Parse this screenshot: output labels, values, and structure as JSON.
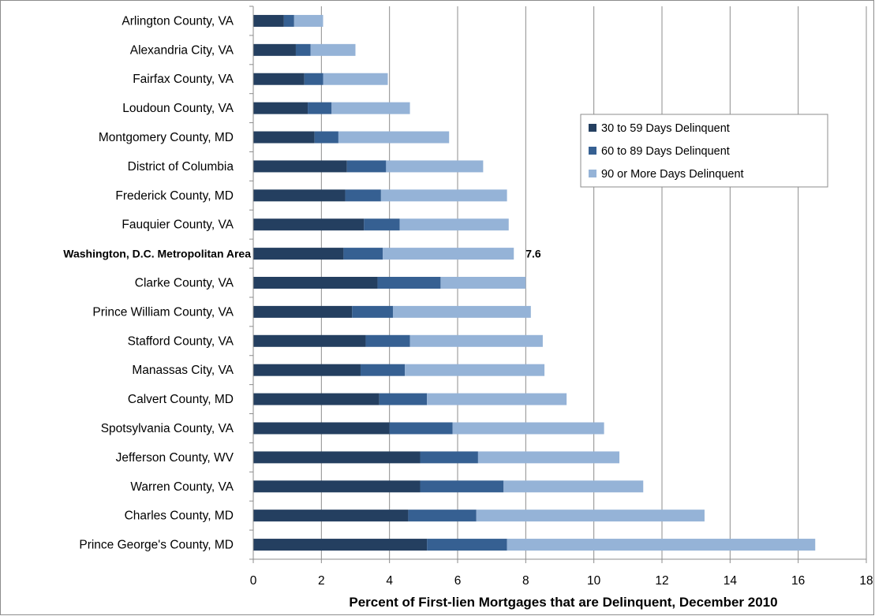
{
  "chart_data": {
    "type": "bar",
    "orientation": "horizontal",
    "stacked": true,
    "categories": [
      "Arlington County, VA",
      "Alexandria City, VA",
      "Fairfax County, VA",
      "Loudoun County, VA",
      "Montgomery County, MD",
      "District of Columbia",
      "Frederick County, MD",
      "Fauquier County, VA",
      "Washington, D.C.  Metropolitan Area",
      "Clarke County, VA",
      "Prince William County, VA",
      "Stafford County, VA",
      "Manassas City, VA",
      "Calvert County, MD",
      "Spotsylvania County, VA",
      "Jefferson County, WV",
      "Warren County, VA",
      "Charles County, MD",
      "Prince George's County, MD"
    ],
    "highlighted_category": "Washington, D.C.  Metropolitan Area",
    "series": [
      {
        "name": "30 to 59 Days Delinquent",
        "color": "#243f60",
        "values": [
          0.9,
          1.25,
          1.5,
          1.6,
          1.8,
          2.75,
          2.7,
          3.25,
          2.65,
          3.65,
          2.9,
          3.3,
          3.15,
          3.7,
          4.0,
          4.9,
          4.9,
          4.55,
          5.1
        ]
      },
      {
        "name": "60 to 89 Days Delinquent",
        "color": "#366092",
        "values": [
          0.3,
          0.43,
          0.55,
          0.7,
          0.7,
          1.15,
          1.05,
          1.05,
          1.15,
          1.85,
          1.2,
          1.3,
          1.3,
          1.4,
          1.85,
          1.7,
          2.45,
          2.0,
          2.35
        ]
      },
      {
        "name": "90 or More Days Delinquent",
        "color": "#95b3d7",
        "values": [
          0.85,
          1.32,
          1.9,
          2.3,
          3.25,
          2.85,
          3.7,
          3.2,
          3.85,
          2.5,
          4.05,
          3.9,
          4.1,
          4.1,
          4.45,
          4.15,
          4.1,
          6.7,
          9.05
        ]
      }
    ],
    "annotations": [
      {
        "category": "Washington, D.C.  Metropolitan Area",
        "text": "7.6"
      }
    ],
    "xlabel": "Percent of First-lien Mortgages that are Delinquent, December 2010",
    "ylabel": "",
    "xlim": [
      0,
      18
    ],
    "xticks": [
      0,
      2,
      4,
      6,
      8,
      10,
      12,
      14,
      16,
      18
    ],
    "grid": "vertical",
    "legend_position": "top-right"
  }
}
